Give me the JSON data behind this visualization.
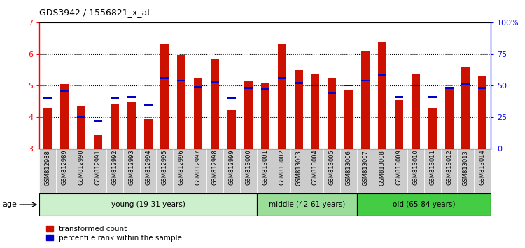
{
  "title": "GDS3942 / 1556821_x_at",
  "samples": [
    "GSM812988",
    "GSM812989",
    "GSM812990",
    "GSM812991",
    "GSM812992",
    "GSM812993",
    "GSM812994",
    "GSM812995",
    "GSM812996",
    "GSM812997",
    "GSM812998",
    "GSM812999",
    "GSM813000",
    "GSM813001",
    "GSM813002",
    "GSM813003",
    "GSM813004",
    "GSM813005",
    "GSM813006",
    "GSM813007",
    "GSM813008",
    "GSM813009",
    "GSM813010",
    "GSM813011",
    "GSM813012",
    "GSM813013",
    "GSM813014"
  ],
  "transformed_count": [
    4.3,
    5.05,
    4.33,
    3.45,
    4.42,
    4.47,
    3.95,
    6.3,
    5.97,
    5.22,
    5.85,
    4.22,
    5.15,
    5.07,
    6.3,
    5.5,
    5.35,
    5.25,
    4.88,
    6.08,
    6.38,
    4.53,
    5.35,
    4.3,
    4.9,
    5.58,
    5.3
  ],
  "percentile_rank": [
    40,
    46,
    25,
    22,
    40,
    41,
    35,
    56,
    54,
    49,
    53,
    40,
    48,
    47,
    56,
    52,
    50,
    44,
    50,
    54,
    58,
    41,
    50,
    41,
    48,
    51,
    48
  ],
  "groups": [
    {
      "label": "young (19-31 years)",
      "start": 0,
      "end": 13,
      "color": "#ccf0cc"
    },
    {
      "label": "middle (42-61 years)",
      "start": 13,
      "end": 19,
      "color": "#99dd99"
    },
    {
      "label": "old (65-84 years)",
      "start": 19,
      "end": 27,
      "color": "#44cc44"
    }
  ],
  "ylim_left": [
    3,
    7
  ],
  "ylim_right": [
    0,
    100
  ],
  "yticks_left": [
    3,
    4,
    5,
    6,
    7
  ],
  "yticks_right": [
    0,
    25,
    50,
    75,
    100
  ],
  "ytick_labels_right": [
    "0",
    "25",
    "50",
    "75",
    "100%"
  ],
  "bar_color": "#cc1100",
  "percentile_color": "#0000cc",
  "bg_color": "#ffffff",
  "xticklabel_bg": "#cccccc",
  "bar_width": 0.5,
  "legend_items": [
    {
      "label": "transformed count",
      "color": "#cc1100"
    },
    {
      "label": "percentile rank within the sample",
      "color": "#0000cc"
    }
  ]
}
